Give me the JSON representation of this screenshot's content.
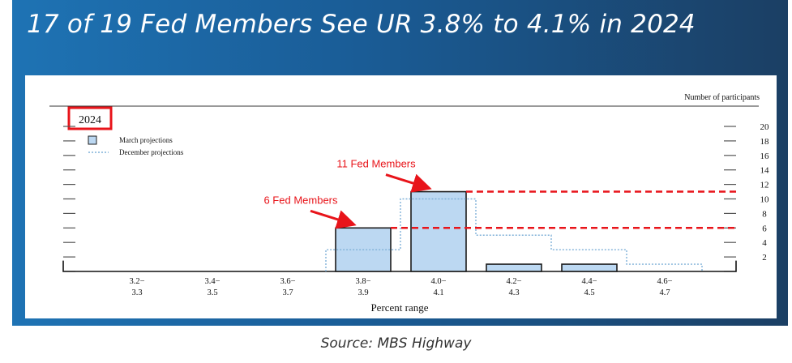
{
  "slide": {
    "title": "17 of 19 Fed Members See UR 3.8% to 4.1% in 2024",
    "source": "Source: MBS Highway"
  },
  "chart_data": {
    "type": "bar",
    "panel_label": "2024",
    "y_axis_title": "Number of participants",
    "xlabel": "Percent range",
    "categories": [
      [
        "3.2−",
        "3.3"
      ],
      [
        "3.4−",
        "3.5"
      ],
      [
        "3.6−",
        "3.7"
      ],
      [
        "3.8−",
        "3.9"
      ],
      [
        "4.0−",
        "4.1"
      ],
      [
        "4.2−",
        "4.3"
      ],
      [
        "4.4−",
        "4.5"
      ],
      [
        "4.6−",
        "4.7"
      ]
    ],
    "y_ticks": [
      2,
      4,
      6,
      8,
      10,
      12,
      14,
      16,
      18,
      20
    ],
    "ylim": [
      0,
      20
    ],
    "legend": {
      "placement": "top-left",
      "march": "March projections",
      "december": "December projections"
    },
    "series": [
      {
        "name": "March projections",
        "style": "filled",
        "values": [
          0,
          0,
          0,
          6,
          11,
          1,
          1,
          0
        ]
      },
      {
        "name": "December projections",
        "style": "dotted",
        "values": [
          0,
          0,
          0,
          3,
          10,
          5,
          3,
          1
        ]
      }
    ],
    "annotations": [
      {
        "text": "6 Fed Members",
        "category_index": 3,
        "value": 6
      },
      {
        "text": "11 Fed Members",
        "category_index": 4,
        "value": 11
      }
    ],
    "colors": {
      "bar_fill": "#bcd8f2",
      "bar_edge": "#1c1c1c",
      "december_line": "#7fb0d8",
      "annotation": "#e8141a",
      "reference_line": "#e8141a"
    }
  }
}
